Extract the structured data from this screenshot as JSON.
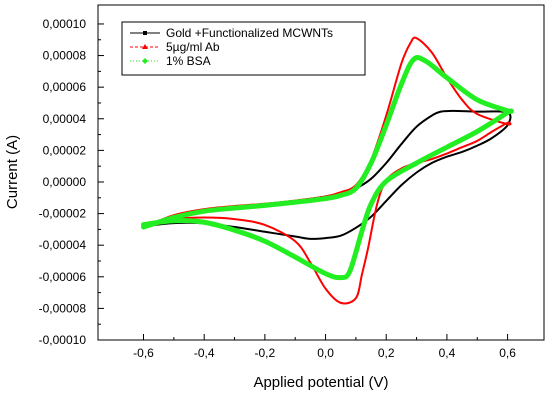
{
  "chart_data": {
    "type": "line",
    "xlabel": "Applied potential (V)",
    "ylabel": "Current (A)",
    "xlim": [
      -0.75,
      0.72
    ],
    "ylim": [
      -0.0001,
      0.000112
    ],
    "x_ticks": [
      -0.6,
      -0.4,
      -0.2,
      0.0,
      0.2,
      0.4,
      0.6
    ],
    "x_tick_labels": [
      "-0,6",
      "-0,4",
      "-0,2",
      "0,0",
      "0,2",
      "0,4",
      "0,6"
    ],
    "y_ticks": [
      -0.0001,
      -8e-05,
      -6e-05,
      -4e-05,
      -2e-05,
      0,
      2e-05,
      4e-05,
      6e-05,
      8e-05,
      0.0001
    ],
    "y_tick_labels": [
      "-0,00010",
      "-0,00008",
      "-0,00006",
      "-0,00004",
      "-0,00002",
      "0,00000",
      "0,00002",
      "0,00004",
      "0,00006",
      "0,00008",
      "0,00010"
    ],
    "grid": false,
    "legend_position": "top-left",
    "series": [
      {
        "name": "Gold +Functionalized MCWNTs",
        "color": "#000000",
        "marker": "square",
        "line_style": "solid",
        "stroke_width": 2,
        "x": [
          -0.6,
          -0.5,
          -0.4,
          -0.3,
          -0.2,
          -0.1,
          0.0,
          0.05,
          0.1,
          0.15,
          0.2,
          0.25,
          0.3,
          0.35,
          0.38,
          0.42,
          0.5,
          0.6,
          0.6,
          0.55,
          0.5,
          0.45,
          0.4,
          0.35,
          0.3,
          0.25,
          0.2,
          0.15,
          0.1,
          0.05,
          0.0,
          -0.05,
          -0.1,
          -0.2,
          -0.3,
          -0.4,
          -0.5,
          -0.6
        ],
        "y": [
          -2.85e-05,
          -2.2e-05,
          -1.85e-05,
          -1.62e-05,
          -1.42e-05,
          -1.2e-05,
          -9.2e-06,
          -7e-06,
          -4e-06,
          2e-06,
          1.2e-05,
          2.4e-05,
          3.5e-05,
          4.2e-05,
          4.45e-05,
          4.5e-05,
          4.45e-05,
          4.4e-05,
          3.6e-05,
          2.8e-05,
          2.3e-05,
          1.9e-05,
          1.6e-05,
          1.2e-05,
          6e-06,
          -2e-06,
          -1.2e-05,
          -2.2e-05,
          -2.9e-05,
          -3.4e-05,
          -3.55e-05,
          -3.6e-05,
          -3.45e-05,
          -3.15e-05,
          -2.85e-05,
          -2.62e-05,
          -2.6e-05,
          -2.8e-05
        ]
      },
      {
        "name": "5µg/ml Ab",
        "color": "#ff0000",
        "marker": "triangle",
        "line_style": "dashed",
        "stroke_width": 2,
        "x": [
          -0.6,
          -0.5,
          -0.4,
          -0.3,
          -0.2,
          -0.1,
          0.0,
          0.05,
          0.1,
          0.15,
          0.2,
          0.25,
          0.28,
          0.3,
          0.35,
          0.4,
          0.45,
          0.5,
          0.6,
          0.6,
          0.55,
          0.5,
          0.45,
          0.4,
          0.35,
          0.3,
          0.25,
          0.2,
          0.17,
          0.14,
          0.12,
          0.1,
          0.05,
          0.0,
          -0.05,
          -0.1,
          -0.2,
          -0.3,
          -0.4,
          -0.5,
          -0.6
        ],
        "y": [
          -2.85e-05,
          -2.1e-05,
          -1.72e-05,
          -1.52e-05,
          -1.38e-05,
          -1.18e-05,
          -9.2e-06,
          -6.5e-06,
          -2e-06,
          1.4e-05,
          4.2e-05,
          7.5e-05,
          8.8e-05,
          9.1e-05,
          8.2e-05,
          6.6e-05,
          5.2e-05,
          4.3e-05,
          3.65e-05,
          3.75e-05,
          3.2e-05,
          2.6e-05,
          2.2e-05,
          1.8e-05,
          1.45e-05,
          1.2e-05,
          8.5e-06,
          1e-06,
          -1.4e-05,
          -4.2e-05,
          -5.85e-05,
          -7.35e-05,
          -7.65e-05,
          -6.75e-05,
          -5.1e-05,
          -3.75e-05,
          -2.72e-05,
          -2.35e-05,
          -2.25e-05,
          -2.35e-05,
          -2.7e-05
        ]
      },
      {
        "name": "1% BSA",
        "color": "#22ee22",
        "marker": "diamond",
        "line_style": "dotted",
        "stroke_width": 5,
        "x": [
          -0.6,
          -0.5,
          -0.4,
          -0.3,
          -0.2,
          -0.1,
          0.0,
          0.05,
          0.1,
          0.15,
          0.2,
          0.25,
          0.29,
          0.33,
          0.4,
          0.5,
          0.6,
          0.6,
          0.5,
          0.4,
          0.3,
          0.2,
          0.15,
          0.12,
          0.08,
          0.05,
          0.0,
          -0.1,
          -0.2,
          -0.3,
          -0.4,
          -0.5,
          -0.6
        ],
        "y": [
          -2.85e-05,
          -2.25e-05,
          -1.85e-05,
          -1.65e-05,
          -1.48e-05,
          -1.28e-05,
          -1.05e-05,
          -8.5e-06,
          -4e-06,
          1.2e-05,
          3.6e-05,
          6.2e-05,
          7.75e-05,
          7.65e-05,
          6.6e-05,
          5.2e-05,
          4.5e-05,
          4.4e-05,
          3.2e-05,
          2.2e-05,
          1.2e-05,
          5e-07,
          -1.4e-05,
          -3.1e-05,
          -5.65e-05,
          -6.05e-05,
          -5.8e-05,
          -4.75e-05,
          -3.75e-05,
          -3.05e-05,
          -2.55e-05,
          -2.45e-05,
          -2.7e-05
        ]
      }
    ]
  }
}
